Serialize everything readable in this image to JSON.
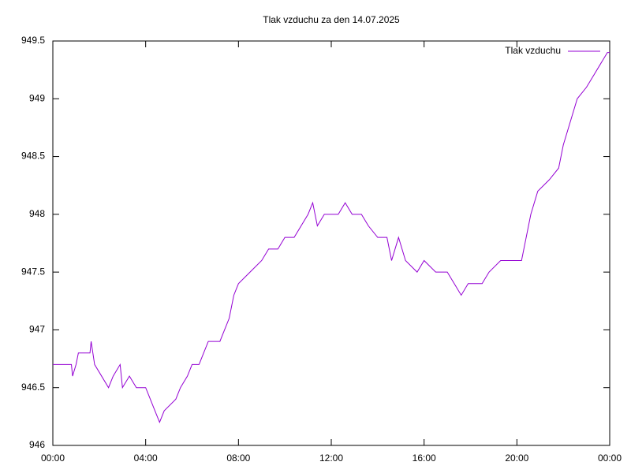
{
  "chart_data": {
    "type": "line",
    "title": "Tlak vzduchu za den 14.07.2025",
    "x": [
      0,
      0.8,
      0.85,
      1.0,
      1.1,
      1.6,
      1.65,
      1.8,
      2.1,
      2.4,
      2.6,
      2.9,
      2.95,
      3.0,
      3.3,
      3.6,
      4.0,
      4.2,
      4.4,
      4.6,
      4.8,
      5.3,
      5.5,
      5.8,
      6.0,
      6.3,
      6.5,
      6.7,
      7.2,
      7.4,
      7.6,
      7.8,
      8.0,
      8.5,
      9.0,
      9.3,
      9.7,
      10.0,
      10.4,
      10.7,
      11.0,
      11.2,
      11.4,
      11.7,
      12.0,
      12.3,
      12.6,
      12.9,
      13.3,
      13.6,
      14.0,
      14.4,
      14.6,
      14.9,
      15.2,
      15.7,
      16.0,
      16.5,
      17.0,
      17.3,
      17.6,
      17.9,
      18.5,
      18.8,
      19.3,
      19.8,
      20.2,
      20.4,
      20.6,
      20.9,
      21.4,
      21.8,
      22.0,
      22.3,
      22.6,
      23.0,
      23.3,
      23.6,
      23.9,
      24.0
    ],
    "series": [
      {
        "name": "Tlak vzduchu",
        "color": "#9400d3",
        "values": [
          946.7,
          946.7,
          946.6,
          946.7,
          946.8,
          946.8,
          946.9,
          946.7,
          946.6,
          946.5,
          946.6,
          946.7,
          946.6,
          946.5,
          946.6,
          946.5,
          946.5,
          946.4,
          946.3,
          946.2,
          946.3,
          946.4,
          946.5,
          946.6,
          946.7,
          946.7,
          946.8,
          946.9,
          946.9,
          947.0,
          947.1,
          947.3,
          947.4,
          947.5,
          947.6,
          947.7,
          947.7,
          947.8,
          947.8,
          947.9,
          948.0,
          948.1,
          947.9,
          948.0,
          948.0,
          948.0,
          948.1,
          948.0,
          948.0,
          947.9,
          947.8,
          947.8,
          947.6,
          947.8,
          947.6,
          947.5,
          947.6,
          947.5,
          947.5,
          947.4,
          947.3,
          947.4,
          947.4,
          947.5,
          947.6,
          947.6,
          947.6,
          947.8,
          948.0,
          948.2,
          948.3,
          948.4,
          948.6,
          948.8,
          949.0,
          949.1,
          949.2,
          949.3,
          949.4,
          949.4
        ]
      }
    ],
    "xlim": [
      0,
      24
    ],
    "xticks": [
      {
        "value": 0,
        "label": "00:00"
      },
      {
        "value": 4,
        "label": "04:00"
      },
      {
        "value": 8,
        "label": "08:00"
      },
      {
        "value": 12,
        "label": "12:00"
      },
      {
        "value": 16,
        "label": "16:00"
      },
      {
        "value": 20,
        "label": "20:00"
      },
      {
        "value": 24,
        "label": "00:00"
      }
    ],
    "ylim": [
      946,
      949.5
    ],
    "yticks": [
      946,
      946.5,
      947,
      947.5,
      948,
      948.5,
      949,
      949.5
    ],
    "legend": "top-right",
    "grid": false
  }
}
